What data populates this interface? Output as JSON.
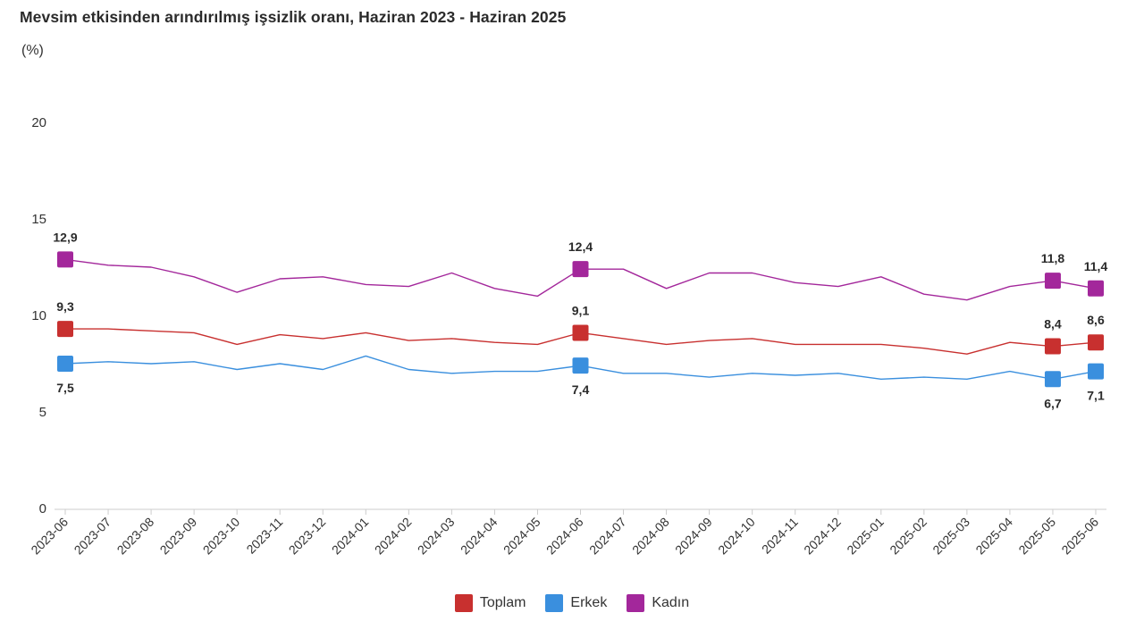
{
  "chart_data": {
    "type": "line",
    "title": "Mevsim etkisinden arındırılmış işsizlik oranı, Haziran 2023 - Haziran 2025",
    "ylabel": "(%)",
    "xlabel": "",
    "ylim": [
      0,
      20
    ],
    "yticks": [
      "0",
      "5",
      "10",
      "15",
      "20"
    ],
    "grid": false,
    "legend_position": "bottom-center",
    "categories": [
      "2023-06",
      "2023-07",
      "2023-08",
      "2023-09",
      "2023-10",
      "2023-11",
      "2023-12",
      "2024-01",
      "2024-02",
      "2024-03",
      "2024-04",
      "2024-05",
      "2024-06",
      "2024-07",
      "2024-08",
      "2024-09",
      "2024-10",
      "2024-11",
      "2024-12",
      "2025-01",
      "2025-02",
      "2025-03",
      "2025-04",
      "2025-05",
      "2025-06"
    ],
    "series": [
      {
        "name": "Toplam",
        "color": "#c8302f",
        "values": [
          9.3,
          9.3,
          9.2,
          9.1,
          8.5,
          9.0,
          8.8,
          9.1,
          8.7,
          8.8,
          8.6,
          8.5,
          9.1,
          8.8,
          8.5,
          8.7,
          8.8,
          8.5,
          8.5,
          8.5,
          8.3,
          8.0,
          8.6,
          8.4,
          8.6
        ],
        "labels": [
          {
            "index": 0,
            "text": "9,3"
          },
          {
            "index": 12,
            "text": "9,1"
          },
          {
            "index": 23,
            "text": "8,4"
          },
          {
            "index": 24,
            "text": "8,6"
          }
        ]
      },
      {
        "name": "Erkek",
        "color": "#3a8fde",
        "values": [
          7.5,
          7.6,
          7.5,
          7.6,
          7.2,
          7.5,
          7.2,
          7.9,
          7.2,
          7.0,
          7.1,
          7.1,
          7.4,
          7.0,
          7.0,
          6.8,
          7.0,
          6.9,
          7.0,
          6.7,
          6.8,
          6.7,
          7.1,
          6.7,
          7.1
        ],
        "labels": [
          {
            "index": 0,
            "text": "7,5"
          },
          {
            "index": 12,
            "text": "7,4"
          },
          {
            "index": 23,
            "text": "6,7"
          },
          {
            "index": 24,
            "text": "7,1"
          }
        ]
      },
      {
        "name": "Kadın",
        "color": "#a3279b",
        "values": [
          12.9,
          12.6,
          12.5,
          12.0,
          11.2,
          11.9,
          12.0,
          11.6,
          11.5,
          12.2,
          11.4,
          11.0,
          12.4,
          12.4,
          11.4,
          12.2,
          12.2,
          11.7,
          11.5,
          12.0,
          11.1,
          10.8,
          11.5,
          11.8,
          11.4
        ],
        "labels": [
          {
            "index": 0,
            "text": "12,9"
          },
          {
            "index": 12,
            "text": "12,4"
          },
          {
            "index": 23,
            "text": "11,8"
          },
          {
            "index": 24,
            "text": "11,4"
          }
        ]
      }
    ]
  }
}
